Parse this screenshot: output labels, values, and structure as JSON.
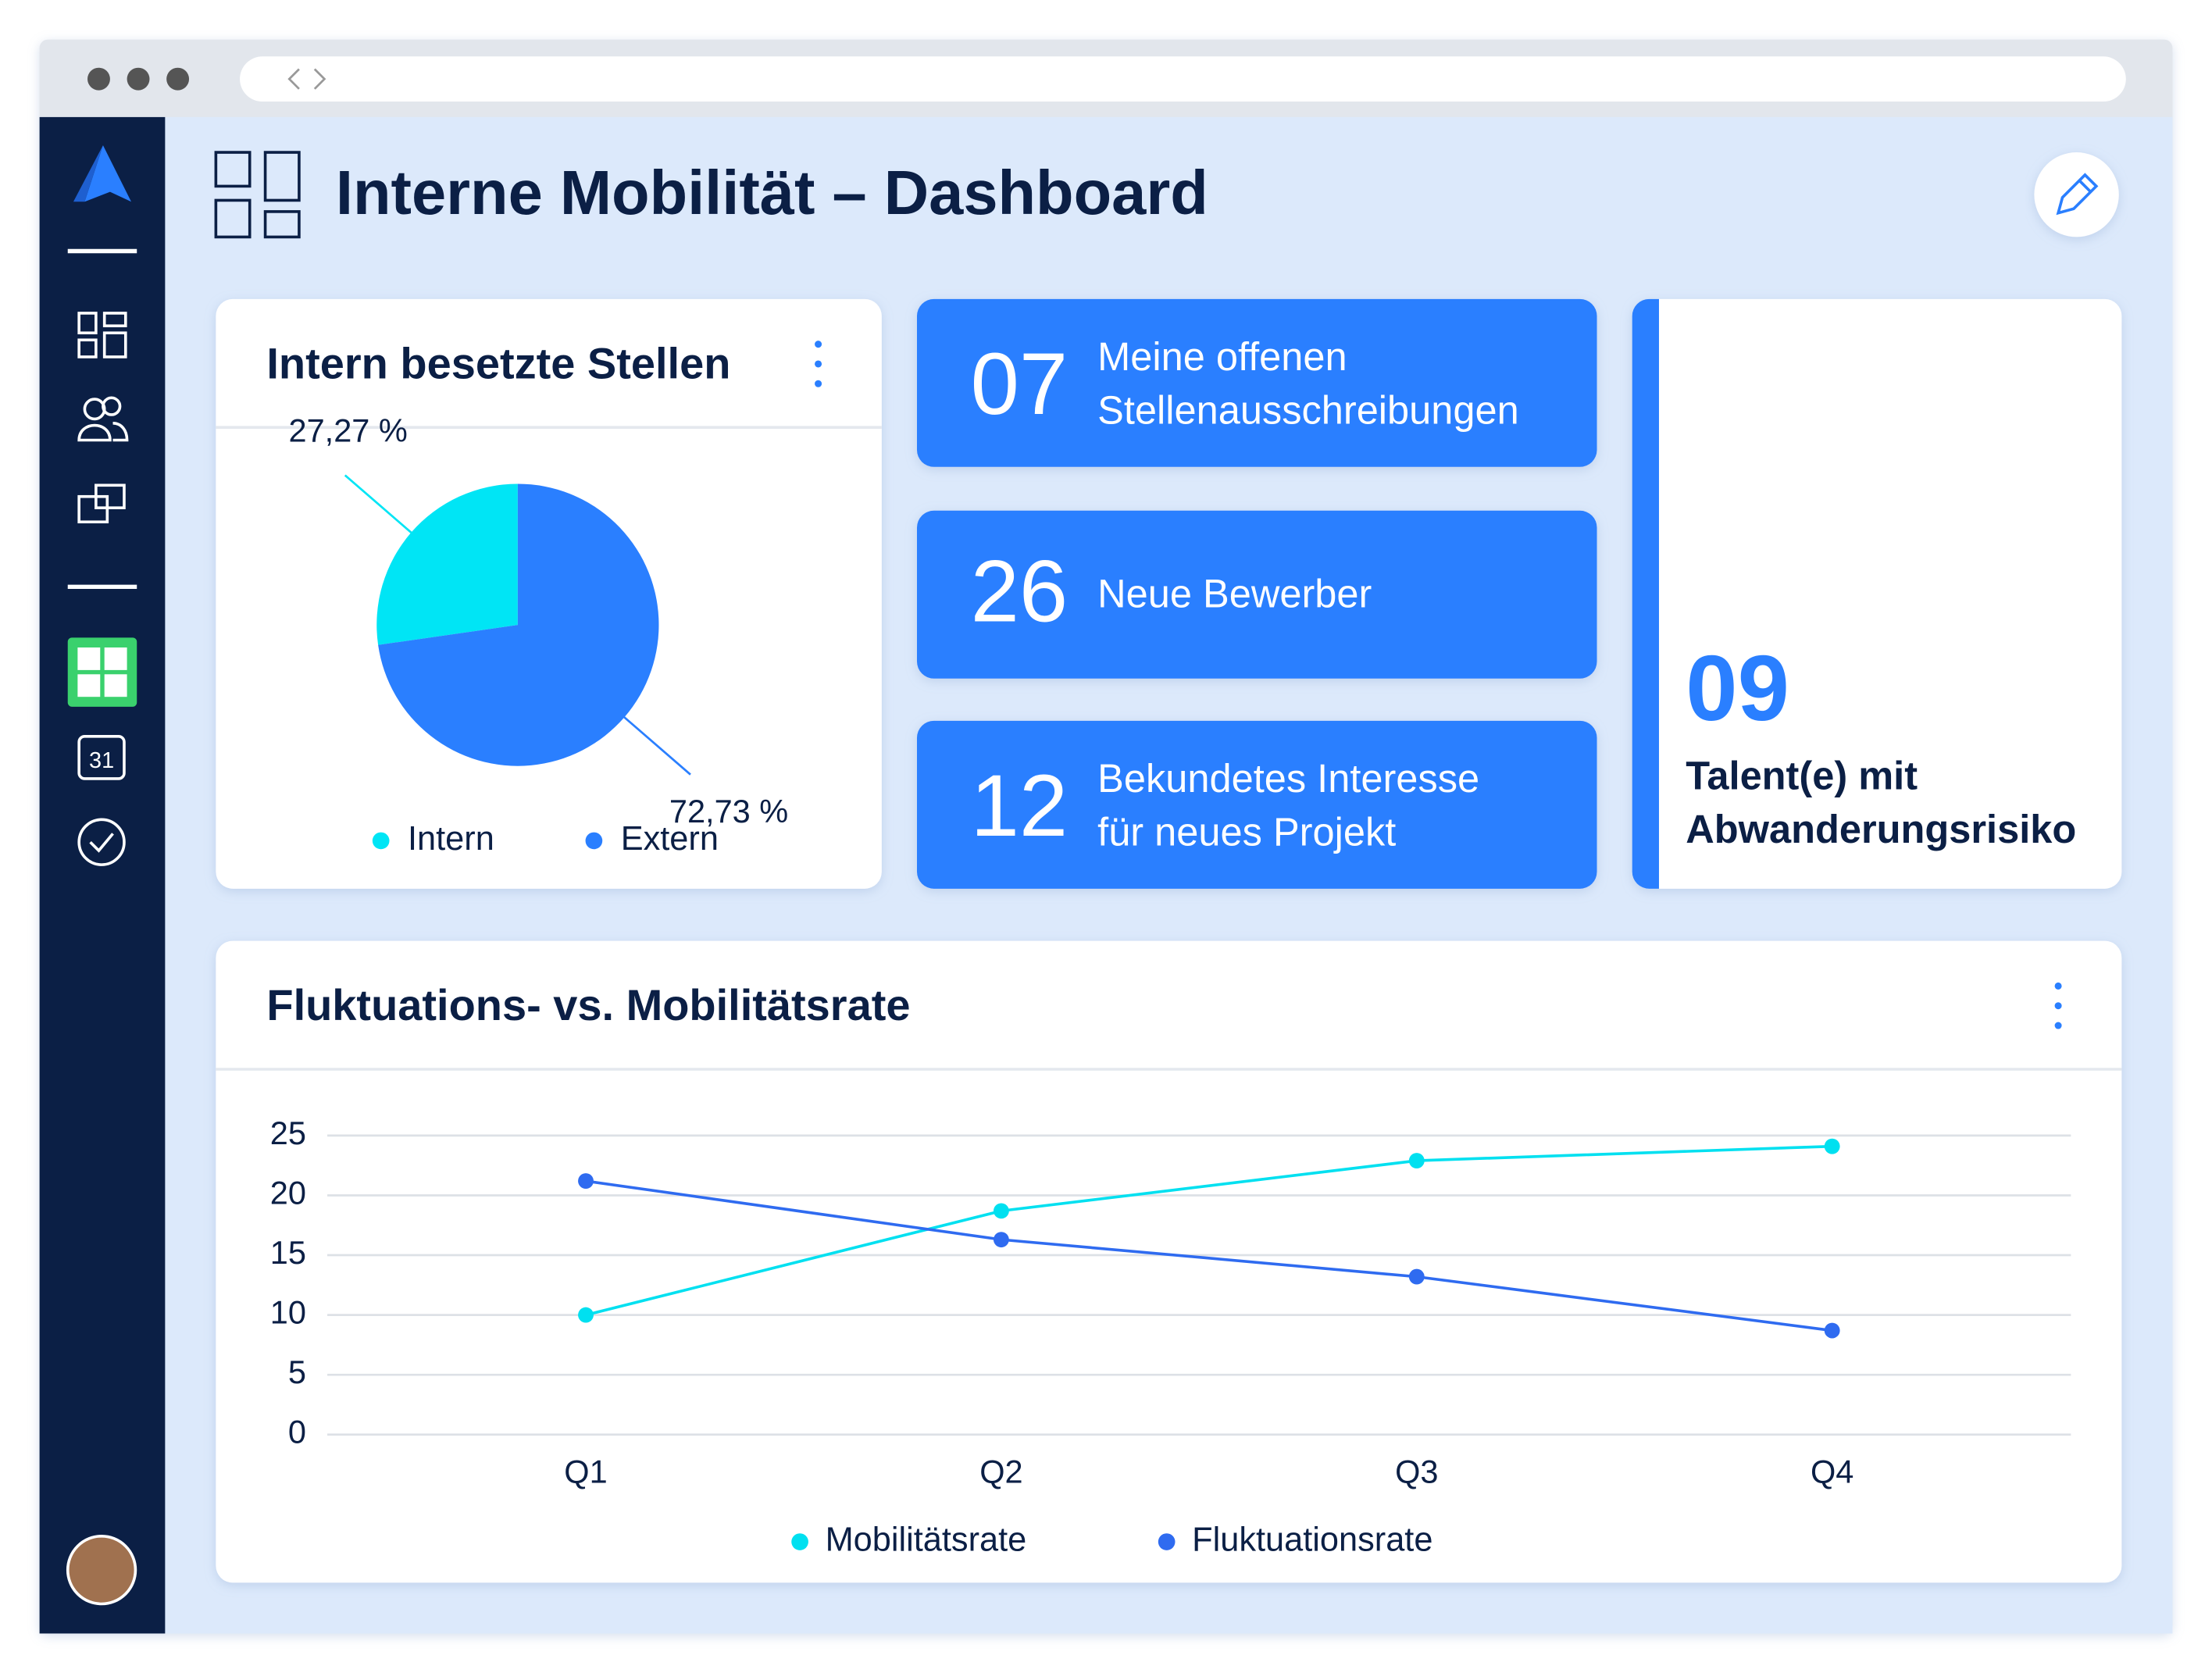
{
  "header": {
    "title": "Interne Mobilität – Dashboard"
  },
  "kpis": [
    {
      "value": "07",
      "lines": [
        "Meine offenen",
        "Stellenausschreibungen"
      ]
    },
    {
      "value": "26",
      "lines": [
        "Neue Bewerber"
      ]
    },
    {
      "value": "12",
      "lines": [
        "Bekundetes Interesse",
        "für neues Projekt"
      ]
    },
    {
      "value": "09",
      "lines": [
        "Talent(e) mit",
        "Abwanderungsrisiko"
      ]
    }
  ],
  "chart_data": [
    {
      "type": "pie",
      "title": "Intern besetzte Stellen",
      "categories": [
        "Intern",
        "Extern"
      ],
      "values": [
        27.27,
        72.73
      ],
      "value_labels": [
        "27,27 %",
        "72,73 %"
      ],
      "colors": [
        "#00e5f5",
        "#2a7fff"
      ]
    },
    {
      "type": "line",
      "title": "Fluktuations- vs. Mobilitätsrate",
      "categories": [
        "Q1",
        "Q2",
        "Q3",
        "Q4"
      ],
      "series": [
        {
          "name": "Mobilitätsrate",
          "color": "#00e0f0",
          "values": [
            10,
            18.7,
            22.9,
            24.1
          ]
        },
        {
          "name": "Fluktuationsrate",
          "color": "#2f6bf0",
          "values": [
            21.2,
            16.3,
            13.2,
            8.7
          ]
        }
      ],
      "ylim": [
        0,
        25
      ],
      "yticks": [
        0,
        5,
        10,
        15,
        20,
        25
      ],
      "grid": true
    }
  ]
}
